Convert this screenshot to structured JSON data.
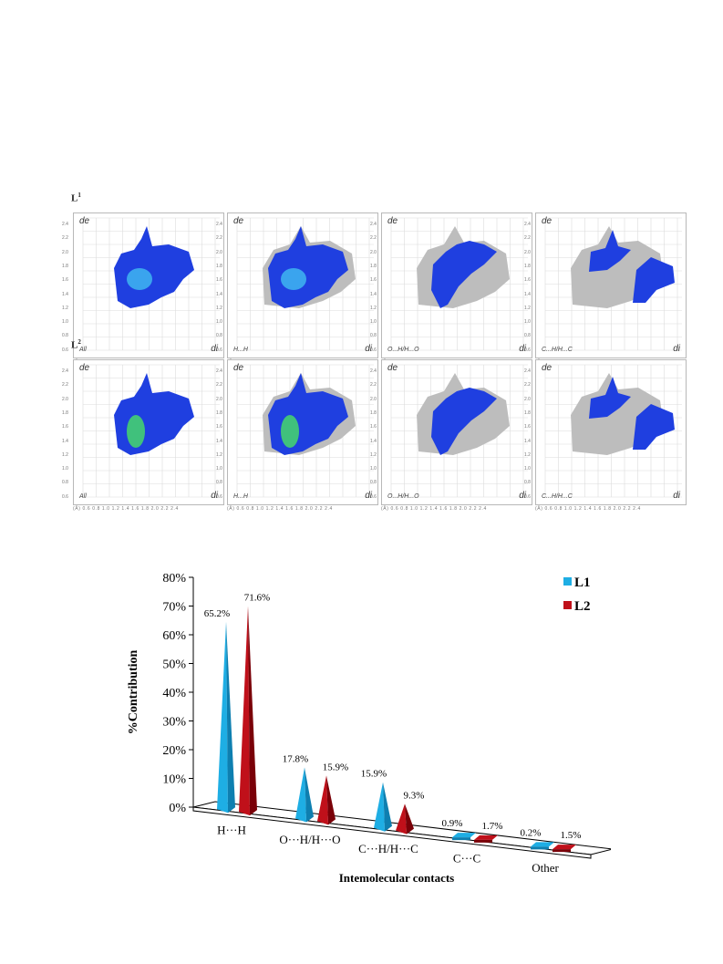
{
  "fingerprints": {
    "rows": [
      {
        "label": "L",
        "sup": "1",
        "panels": [
          "All",
          "H...H",
          "O...H/H...O",
          "C...H/H...C"
        ]
      },
      {
        "label": "L",
        "sup": "2",
        "panels": [
          "All",
          "H...H",
          "O...H/H...O",
          "C...H/H...C"
        ]
      }
    ],
    "axis_de": "de",
    "axis_di": "di",
    "x_ticks": "(Å)  0.6  0.8  1.0  1.2  1.4  1.6  1.8  2.0  2.2  2.4",
    "y_ticks": [
      "2.4",
      "2.2",
      "2.0",
      "1.8",
      "1.6",
      "1.4",
      "1.2",
      "1.0",
      "0.8",
      "0.6"
    ]
  },
  "chart_data": {
    "type": "bar",
    "style": "3d-cone",
    "categories": [
      "H···H",
      "O···H/H···O",
      "C···H/H···C",
      "C···C",
      "Other"
    ],
    "series": [
      {
        "name": "L1",
        "color": "#1eaee4",
        "values": [
          65.2,
          17.8,
          15.9,
          0.9,
          0.2
        ],
        "labels": [
          "65.2%",
          "17.8%",
          "15.9%",
          "0.9%",
          "0.2%"
        ]
      },
      {
        "name": "L2",
        "color": "#c0101a",
        "values": [
          71.6,
          15.9,
          9.3,
          1.7,
          1.5
        ],
        "labels": [
          "71.6%",
          "15.9%",
          "9.3%",
          "1.7%",
          "1.5%"
        ]
      }
    ],
    "ylabel": "%Contribution",
    "xlabel": "Intemolecular contacts",
    "ylim": [
      0,
      80
    ],
    "yticks": [
      "0%",
      "10%",
      "20%",
      "30%",
      "40%",
      "50%",
      "60%",
      "70%",
      "80%"
    ],
    "legend_position": "top-right"
  }
}
